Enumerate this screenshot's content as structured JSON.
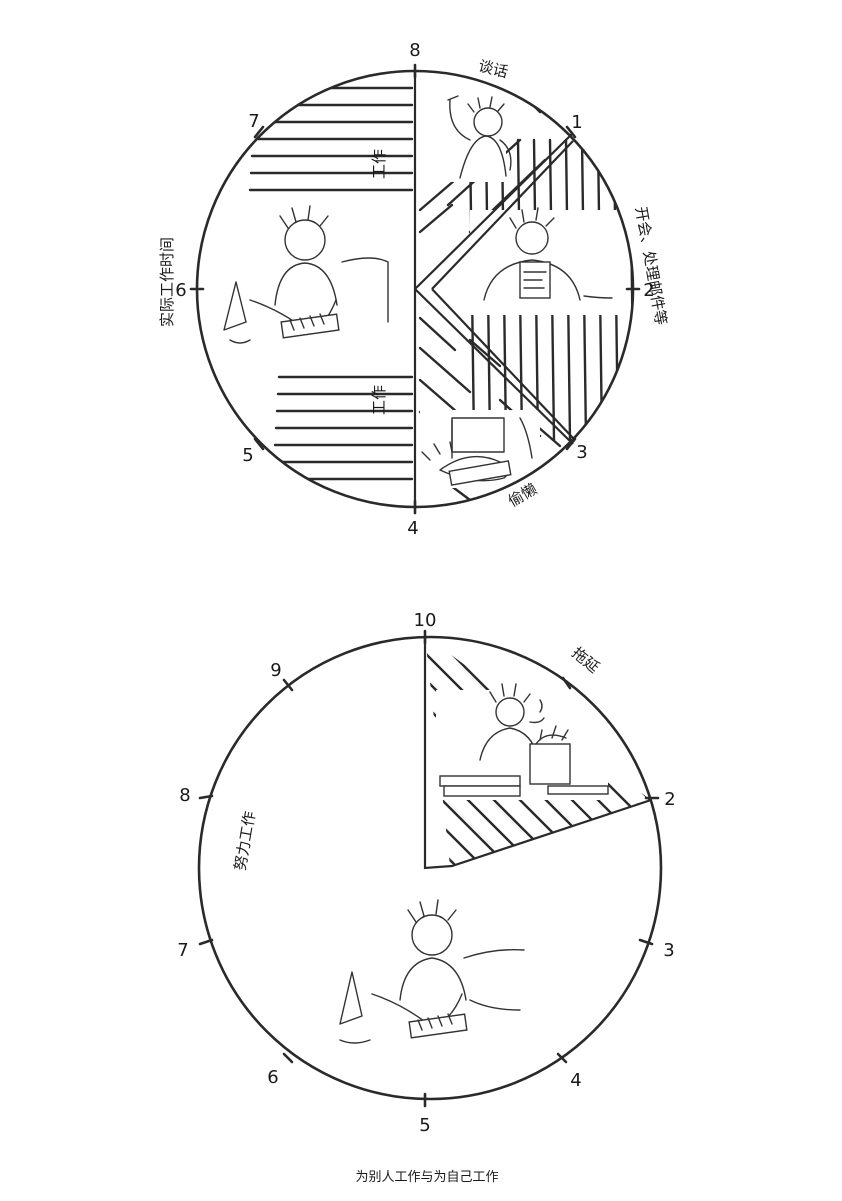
{
  "caption": "为别人工作与为自己工作",
  "clock_top": {
    "ticks": [
      "8",
      "1",
      "2",
      "3",
      "4",
      "5",
      "6",
      "7"
    ],
    "labels": {
      "talk": "谈话",
      "meetings_email": "开会、处理邮件等",
      "slacking": "偷懒",
      "actual_work_time": "实际工作时间",
      "work_upper": "工作",
      "work_lower": "工作"
    }
  },
  "clock_bottom": {
    "ticks": [
      "10",
      "2",
      "3",
      "4",
      "5",
      "6",
      "7",
      "8",
      "9"
    ],
    "labels": {
      "procrastinate": "拖延",
      "hard_work": "努力工作"
    }
  }
}
